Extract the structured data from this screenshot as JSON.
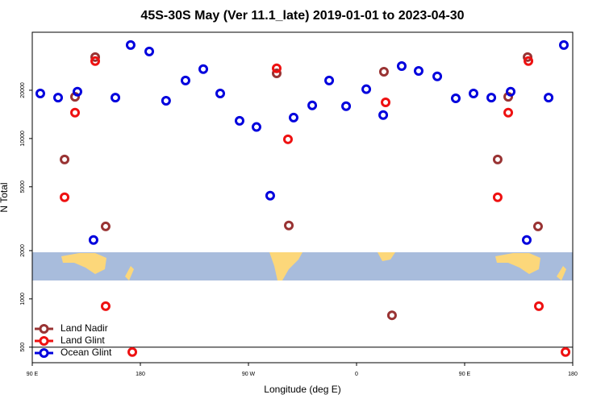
{
  "chart_data": {
    "type": "scatter",
    "title": "45S-30S May (Ver 11.1_late)   2019-01-01 to 2023-04-30",
    "x_label": "Longitude (deg E)",
    "y_label": "N Total",
    "log_y": true,
    "xlim": [
      90,
      540
    ],
    "xticks": [
      {
        "value": 90,
        "label": "90 E"
      },
      {
        "value": 180,
        "label": "180"
      },
      {
        "value": 270,
        "label": "90 W"
      },
      {
        "value": 360,
        "label": "0"
      },
      {
        "value": 450,
        "label": "90 E"
      },
      {
        "value": 540,
        "label": "180"
      }
    ],
    "ylim": [
      400,
      46000
    ],
    "yticks": [
      500,
      1000,
      2000,
      5000,
      10000,
      20000
    ],
    "legend": "lower left",
    "series": [
      {
        "name": "Land Nadir",
        "color": "#993333",
        "x": [
          116.9,
          125.6,
          142.4,
          151.1,
          293.5,
          303.6,
          382.8,
          389.5,
          477.5,
          486.3,
          502.4,
          511.1
        ],
        "values": [
          7400,
          18200,
          32200,
          2830,
          25500,
          2870,
          26100,
          790,
          7400,
          18200,
          32200,
          2830
        ]
      },
      {
        "name": "Land Glint",
        "color": "#ee1111",
        "x": [
          116.9,
          125.6,
          142.4,
          151.1,
          173.3,
          293.5,
          302.9,
          384.2,
          477.5,
          486.3,
          503.1,
          511.8,
          534.0
        ],
        "values": [
          4300,
          14500,
          30400,
          900,
          466,
          27400,
          9890,
          16800,
          4300,
          14500,
          30400,
          900,
          466
        ]
      },
      {
        "name": "Ocean Glint",
        "color": "#0000dd",
        "x": [
          96.7,
          111.5,
          127.6,
          141.0,
          159.2,
          171.9,
          187.4,
          201.4,
          217.6,
          232.4,
          246.5,
          262.6,
          276.7,
          288.1,
          307.6,
          323.1,
          337.2,
          351.3,
          368.1,
          382.2,
          397.6,
          411.7,
          427.2,
          442.6,
          457.4,
          472.2,
          488.3,
          501.7,
          519.9,
          532.6
        ],
        "values": [
          19100,
          18000,
          19600,
          2330,
          18000,
          38300,
          34900,
          17200,
          23000,
          27100,
          19100,
          12900,
          11800,
          4400,
          13500,
          16100,
          23000,
          15900,
          20300,
          14000,
          28300,
          26400,
          24400,
          17800,
          19100,
          18000,
          19600,
          2330,
          18000,
          38300
        ]
      }
    ]
  }
}
